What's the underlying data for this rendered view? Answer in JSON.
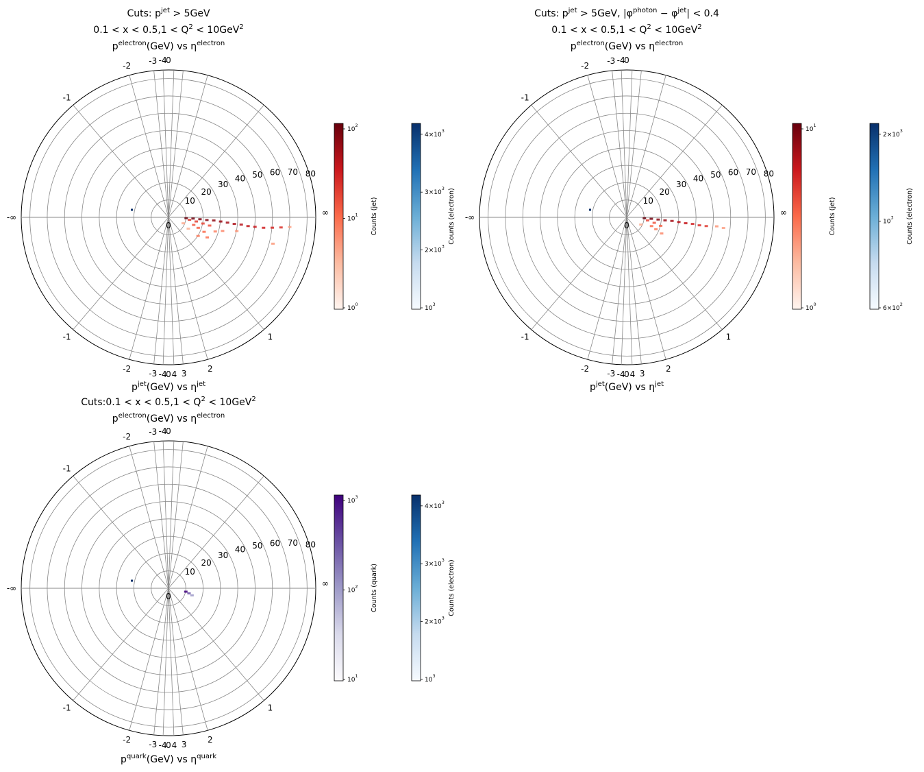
{
  "chart_data": [
    {
      "type": "scatter",
      "polar": true,
      "title_lines": [
        "Cuts: p^{jet} > 5GeV",
        "0.1 < x < 0.5,1 < Q^{2} < 10GeV^{2}",
        "p^{electron}(GeV) vs η^{electron}"
      ],
      "xlabel": "p^{jet}(GeV) vs η^{jet}",
      "rticks": [
        "0",
        "10",
        "20",
        "30",
        "40",
        "50",
        "60",
        "70",
        "80"
      ],
      "eta_ticks": [
        {
          "label": "0",
          "side": "top"
        },
        {
          "label": "-1",
          "side": "left"
        },
        {
          "label": "-2",
          "side": "left"
        },
        {
          "label": "-3",
          "side": "left"
        },
        {
          "label": "-4",
          "side": "left"
        },
        {
          "label": "-∞",
          "side": "left"
        },
        {
          "label": "-4",
          "side": "left"
        },
        {
          "label": "-3",
          "side": "left"
        },
        {
          "label": "-2",
          "side": "left"
        },
        {
          "label": "-1",
          "side": "left"
        },
        {
          "label": "0",
          "side": "bottom"
        },
        {
          "label": "1",
          "side": "right"
        },
        {
          "label": "2",
          "side": "right"
        },
        {
          "label": "3",
          "side": "right"
        },
        {
          "label": "4",
          "side": "right"
        },
        {
          "label": "∞",
          "side": "right"
        }
      ],
      "series": [
        {
          "name": "jet",
          "cmap": "Reds",
          "points": [
            [
              10,
              -0.05
            ],
            [
              14,
              -0.05
            ],
            [
              18,
              -0.06
            ],
            [
              22,
              -0.07
            ],
            [
              26,
              -0.07
            ],
            [
              30,
              -0.08
            ],
            [
              34,
              -0.09
            ],
            [
              38,
              -0.1
            ],
            [
              42,
              -0.1
            ],
            [
              46,
              -0.11
            ],
            [
              50,
              -0.11
            ],
            [
              55,
              -0.11
            ],
            [
              60,
              -0.1
            ],
            [
              65,
              -0.09
            ],
            [
              12,
              -0.12
            ],
            [
              16,
              -0.15
            ],
            [
              20,
              -0.18
            ],
            [
              24,
              -0.2
            ],
            [
              15,
              -0.3
            ],
            [
              18,
              -0.35
            ],
            [
              22,
              -0.4
            ],
            [
              25,
              -0.5
            ],
            [
              20,
              -0.6
            ],
            [
              28,
              -0.3
            ],
            [
              32,
              -0.25
            ],
            [
              40,
              -0.2
            ],
            [
              62,
              -0.25
            ],
            [
              70,
              -0.08
            ],
            [
              9,
              -0.4
            ],
            [
              13,
              -0.55
            ]
          ]
        },
        {
          "name": "electron",
          "cmap": "Blues",
          "points": [
            [
              20,
              2.9
            ]
          ]
        }
      ],
      "colorbars": [
        {
          "label": "Counts (jet)",
          "cmap": "Reds",
          "ticks": [
            "10^{0}",
            "10^{1}",
            "10^{2}"
          ]
        },
        {
          "label": "Counts (electron)",
          "cmap": "Blues",
          "ticks": [
            "10^{3}",
            "2×10^{3}",
            "3×10^{3}",
            "4×10^{3}"
          ]
        }
      ]
    },
    {
      "type": "scatter",
      "polar": true,
      "title_lines": [
        "Cuts: p^{jet} > 5GeV, |φ^{photon} − φ^{jet}| < 0.4",
        "0.1 < x < 0.5,1 < Q^{2} < 10GeV^{2}",
        "p^{electron}(GeV) vs η^{electron}"
      ],
      "xlabel": "p^{jet}(GeV) vs η^{jet}",
      "rticks": [
        "0",
        "10",
        "20",
        "30",
        "40",
        "50",
        "60",
        "70",
        "80"
      ],
      "series": [
        {
          "name": "jet",
          "cmap": "Reds",
          "points": [
            [
              10,
              -0.05
            ],
            [
              14,
              -0.06
            ],
            [
              18,
              -0.07
            ],
            [
              22,
              -0.08
            ],
            [
              26,
              -0.08
            ],
            [
              30,
              -0.09
            ],
            [
              34,
              -0.1
            ],
            [
              38,
              -0.1
            ],
            [
              42,
              -0.11
            ],
            [
              46,
              -0.11
            ],
            [
              12,
              -0.15
            ],
            [
              16,
              -0.2
            ],
            [
              20,
              -0.25
            ],
            [
              15,
              -0.35
            ],
            [
              18,
              -0.4
            ],
            [
              22,
              -0.45
            ],
            [
              52,
              -0.1
            ],
            [
              56,
              -0.11
            ],
            [
              9,
              -0.5
            ]
          ]
        },
        {
          "name": "electron",
          "cmap": "Blues",
          "points": [
            [
              20,
              2.9
            ]
          ]
        }
      ],
      "colorbars": [
        {
          "label": "Counts (jet)",
          "cmap": "Reds",
          "ticks": [
            "10^{0}",
            "10^{1}"
          ]
        },
        {
          "label": "Counts (electron)",
          "cmap": "Blues",
          "ticks": [
            "6×10^{2}",
            "10^{3}",
            "2×10^{3}"
          ]
        }
      ]
    },
    {
      "type": "scatter",
      "polar": true,
      "title_lines": [
        "Cuts:0.1 < x < 0.5,1 < Q^{2} < 10GeV^{2}",
        "p^{electron}(GeV) vs η^{electron}"
      ],
      "xlabel": "p^{quark}(GeV) vs η^{quark}",
      "rticks": [
        "0",
        "10",
        "20",
        "30",
        "40",
        "50",
        "60",
        "70",
        "80"
      ],
      "series": [
        {
          "name": "quark",
          "cmap": "Purples",
          "points": [
            [
              10,
              -0.2
            ],
            [
              12,
              -0.25
            ],
            [
              14,
              -0.3
            ]
          ]
        },
        {
          "name": "electron",
          "cmap": "Blues",
          "points": [
            [
              20,
              2.9
            ]
          ]
        }
      ],
      "colorbars": [
        {
          "label": "Counts (quark)",
          "cmap": "Purples",
          "ticks": [
            "10^{1}",
            "10^{2}",
            "10^{3}"
          ]
        },
        {
          "label": "Counts (electron)",
          "cmap": "Blues",
          "ticks": [
            "10^{3}",
            "2×10^{3}",
            "3×10^{3}",
            "4×10^{3}"
          ]
        }
      ]
    }
  ],
  "colors": {
    "Reds": [
      "#fff5f0",
      "#fcbba1",
      "#fb6a4a",
      "#cb181d",
      "#67000d"
    ],
    "Blues": [
      "#f7fbff",
      "#c6dbef",
      "#6baed6",
      "#2171b5",
      "#08306b"
    ],
    "Purples": [
      "#fcfbfd",
      "#dadaeb",
      "#9e9ac8",
      "#6a51a3",
      "#3f007d"
    ],
    "grid": "#888888"
  }
}
